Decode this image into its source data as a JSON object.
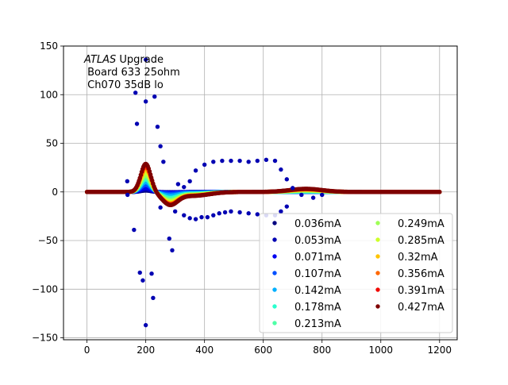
{
  "chart_data": {
    "type": "scatter",
    "annotation": {
      "italic": "ATLAS",
      "rest": " Upgrade",
      "line2": " Board 633 25ohm",
      "line3": " Ch070 35dB lo"
    },
    "xlabel": "",
    "ylabel": "",
    "xlim": [
      -80,
      1260
    ],
    "ylim": [
      -152,
      150
    ],
    "xticks": [
      0,
      200,
      400,
      600,
      800,
      1000,
      1200
    ],
    "yticks": [
      -150,
      -100,
      -50,
      0,
      50,
      100,
      150
    ],
    "grid": true,
    "legend": {
      "placement": "lower-right",
      "columns": 2
    },
    "series": [
      {
        "name": "0.036mA",
        "color": "#00007f",
        "amp": 0.05,
        "dip": 0.02,
        "plat": 0.0
      },
      {
        "name": "0.053mA",
        "color": "#0000b2",
        "amp": 0.09,
        "dip": 0.04,
        "plat": 0.0
      },
      {
        "name": "0.071mA",
        "color": "#0000f1",
        "amp": 0.14,
        "dip": 0.06,
        "plat": 0.0
      },
      {
        "name": "0.107mA",
        "color": "#0050ff",
        "amp": 0.25,
        "dip": 0.14,
        "plat": 0.0
      },
      {
        "name": "0.142mA",
        "color": "#00b0ff",
        "amp": 0.35,
        "dip": 0.28,
        "plat": 0.1
      },
      {
        "name": "0.178mA",
        "color": "#29ffce",
        "amp": 0.45,
        "dip": 0.45,
        "plat": 0.2
      },
      {
        "name": "0.213mA",
        "color": "#4fffa7",
        "amp": 0.52,
        "dip": 0.55,
        "plat": 0.3
      },
      {
        "name": "0.249mA",
        "color": "#9fff56",
        "amp": 0.6,
        "dip": 0.66,
        "plat": 0.45
      },
      {
        "name": "0.285mA",
        "color": "#ceff29",
        "amp": 0.7,
        "dip": 0.76,
        "plat": 0.6
      },
      {
        "name": "0.32mA",
        "color": "#ffc400",
        "amp": 0.8,
        "dip": 0.85,
        "plat": 0.75
      },
      {
        "name": "0.356mA",
        "color": "#ff6800",
        "amp": 0.88,
        "dip": 0.92,
        "plat": 0.85
      },
      {
        "name": "0.391mA",
        "color": "#f10800",
        "amp": 0.94,
        "dip": 0.96,
        "plat": 0.95
      },
      {
        "name": "0.427mA",
        "color": "#7f0000",
        "amp": 1.0,
        "dip": 1.0,
        "plat": 1.0
      }
    ],
    "sparse_points": {
      "series": "0.053mA",
      "x": [
        137,
        138,
        160,
        165,
        170,
        180,
        190,
        200,
        200,
        200,
        220,
        225,
        230,
        240,
        250,
        260,
        280,
        290,
        310,
        330,
        350,
        370,
        400,
        430,
        460,
        490,
        520,
        550,
        580,
        610,
        640,
        660,
        680,
        700,
        730,
        770,
        800,
        250,
        300,
        330,
        350,
        370,
        390,
        410,
        430,
        450,
        470,
        490,
        520,
        550,
        580,
        610,
        640,
        660,
        680
      ],
      "y": [
        11,
        -3,
        -39,
        102,
        70,
        -83,
        -91,
        136,
        93,
        -137,
        -84,
        -109,
        98,
        67,
        47,
        31,
        -48,
        -60,
        8,
        5,
        11,
        22,
        28,
        31,
        32,
        32,
        32,
        31,
        32,
        33,
        32,
        23,
        13,
        4,
        -3,
        -6,
        -3,
        -16,
        -20,
        -24,
        -27,
        -28,
        -26,
        -26,
        -24,
        -22,
        -21,
        -20,
        -21,
        -22,
        -23,
        -24,
        -24,
        -20,
        -15
      ]
    }
  }
}
